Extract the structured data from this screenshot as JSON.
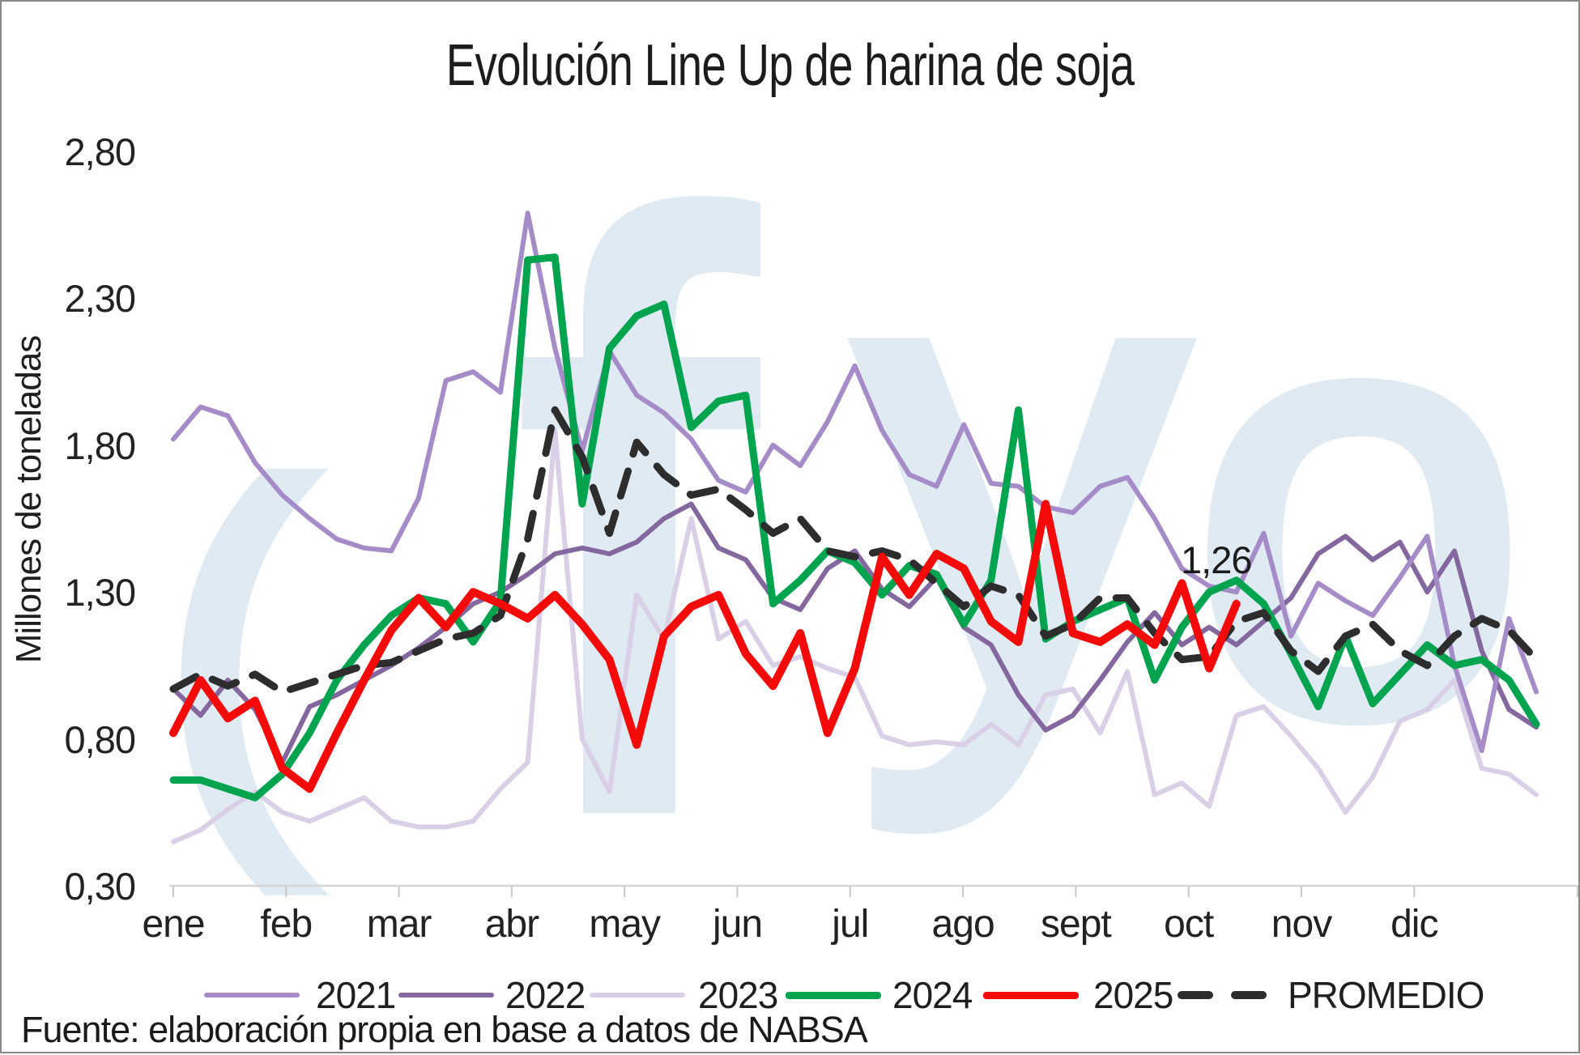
{
  "title": "Evolución Line Up de harina de soja",
  "source": "Fuente: elaboración propia en base a datos de NABSA",
  "watermark": {
    "letters": [
      "(",
      "f",
      "y",
      "o"
    ],
    "color": "#dfeaf2"
  },
  "annotation": {
    "text": "1,26"
  },
  "y_axis": {
    "label": "Millones de toneladas",
    "tick_labels": [
      "2,80",
      "2,30",
      "1,80",
      "1,30",
      "0,80",
      "0,30"
    ],
    "tick_values": [
      2.8,
      2.3,
      1.8,
      1.3,
      0.8,
      0.3
    ],
    "min": 0.3,
    "max": 2.8
  },
  "x_axis": {
    "months": [
      "ene",
      "feb",
      "mar",
      "abr",
      "may",
      "jun",
      "jul",
      "ago",
      "sept",
      "oct",
      "nov",
      "dic"
    ]
  },
  "legend": {
    "items": [
      {
        "label": "2021",
        "color": "#a58cc8",
        "style": "solid"
      },
      {
        "label": "2022",
        "color": "#84679f",
        "style": "solid"
      },
      {
        "label": "2023",
        "color": "#d9cfe6",
        "style": "solid"
      },
      {
        "label": "2024",
        "color": "#00a44f",
        "style": "solid"
      },
      {
        "label": "2025",
        "color": "#f50a0a",
        "style": "solid"
      },
      {
        "label": "PROMEDIO",
        "color": "#2d2d2d",
        "style": "dashed"
      }
    ]
  },
  "chart_data": {
    "type": "line",
    "title": "Evolución Line Up de harina de soja",
    "xlabel": "",
    "ylabel": "Millones de toneladas",
    "ylim": [
      0.3,
      2.8
    ],
    "x_unit": "semana (ene-dic)",
    "grid": false,
    "legend_position": "bottom",
    "annotation": {
      "series": "2025",
      "text": "1,26",
      "value": 1.26
    },
    "series": [
      {
        "name": "2021",
        "color": "#a58cc8",
        "width": 6,
        "dashed": false,
        "values": [
          1.82,
          1.93,
          1.9,
          1.74,
          1.63,
          1.55,
          1.48,
          1.45,
          1.44,
          1.62,
          2.02,
          2.05,
          1.98,
          2.59,
          2.13,
          1.78,
          2.12,
          1.97,
          1.91,
          1.82,
          1.68,
          1.64,
          1.8,
          1.73,
          1.88,
          2.07,
          1.85,
          1.7,
          1.66,
          1.87,
          1.67,
          1.66,
          1.59,
          1.57,
          1.66,
          1.69,
          1.55,
          1.38,
          1.32,
          1.3,
          1.5,
          1.15,
          1.33,
          1.27,
          1.22,
          1.35,
          1.49,
          1.05,
          0.76,
          1.21,
          0.96
        ]
      },
      {
        "name": "2022",
        "color": "#84679f",
        "width": 6,
        "dashed": false,
        "values": [
          0.97,
          0.88,
          1.0,
          0.9,
          0.72,
          0.91,
          0.95,
          1.0,
          1.05,
          1.11,
          1.18,
          1.26,
          1.3,
          1.36,
          1.43,
          1.45,
          1.43,
          1.47,
          1.55,
          1.6,
          1.45,
          1.41,
          1.28,
          1.24,
          1.38,
          1.44,
          1.31,
          1.25,
          1.35,
          1.18,
          1.12,
          0.95,
          0.83,
          0.88,
          1.0,
          1.13,
          1.23,
          1.12,
          1.18,
          1.12,
          1.2,
          1.28,
          1.43,
          1.49,
          1.41,
          1.47,
          1.3,
          1.44,
          1.1,
          0.9,
          0.84
        ]
      },
      {
        "name": "2023",
        "color": "#d9cfe6",
        "width": 6,
        "dashed": false,
        "values": [
          0.45,
          0.49,
          0.56,
          0.62,
          0.55,
          0.52,
          0.56,
          0.6,
          0.52,
          0.5,
          0.5,
          0.52,
          0.63,
          0.72,
          1.85,
          0.8,
          0.62,
          1.29,
          1.14,
          1.55,
          1.14,
          1.2,
          1.05,
          1.08,
          1.04,
          1.01,
          0.81,
          0.78,
          0.79,
          0.78,
          0.85,
          0.78,
          0.95,
          0.97,
          0.82,
          1.03,
          0.61,
          0.65,
          0.57,
          0.88,
          0.91,
          0.81,
          0.7,
          0.55,
          0.67,
          0.86,
          0.9,
          1.0,
          0.7,
          0.68,
          0.61
        ]
      },
      {
        "name": "2024",
        "color": "#00a44f",
        "width": 9,
        "dashed": false,
        "values": [
          0.66,
          0.66,
          0.63,
          0.6,
          0.68,
          0.82,
          1.0,
          1.12,
          1.22,
          1.28,
          1.26,
          1.13,
          1.27,
          2.43,
          2.44,
          1.6,
          2.13,
          2.24,
          2.28,
          1.86,
          1.95,
          1.97,
          1.26,
          1.34,
          1.44,
          1.4,
          1.29,
          1.39,
          1.36,
          1.19,
          1.34,
          1.92,
          1.14,
          1.2,
          1.24,
          1.28,
          1.0,
          1.18,
          1.3,
          1.34,
          1.26,
          1.09,
          0.91,
          1.15,
          0.92,
          1.02,
          1.12,
          1.05,
          1.07,
          1.0,
          0.85
        ]
      },
      {
        "name": "PROMEDIO",
        "color": "#2d2d2d",
        "width": 9,
        "dashed": true,
        "values": [
          0.97,
          1.02,
          0.98,
          1.02,
          0.96,
          0.99,
          1.02,
          1.05,
          1.06,
          1.1,
          1.14,
          1.16,
          1.22,
          1.48,
          1.92,
          1.76,
          1.5,
          1.81,
          1.7,
          1.63,
          1.65,
          1.58,
          1.5,
          1.55,
          1.44,
          1.42,
          1.44,
          1.41,
          1.33,
          1.25,
          1.32,
          1.29,
          1.15,
          1.19,
          1.28,
          1.28,
          1.16,
          1.07,
          1.08,
          1.2,
          1.23,
          1.1,
          1.03,
          1.15,
          1.19,
          1.1,
          1.05,
          1.15,
          1.21,
          1.17,
          1.07
        ]
      },
      {
        "name": "2025",
        "color": "#f50a0a",
        "width": 10,
        "dashed": false,
        "values": [
          0.82,
          1.0,
          0.87,
          0.93,
          0.7,
          0.63,
          0.82,
          1.0,
          1.17,
          1.28,
          1.18,
          1.3,
          1.26,
          1.21,
          1.29,
          1.19,
          1.07,
          0.78,
          1.15,
          1.25,
          1.29,
          1.09,
          0.98,
          1.16,
          0.82,
          1.04,
          1.42,
          1.29,
          1.43,
          1.38,
          1.2,
          1.13,
          1.6,
          1.16,
          1.13,
          1.19,
          1.12,
          1.33,
          1.04,
          1.26
        ]
      }
    ]
  }
}
